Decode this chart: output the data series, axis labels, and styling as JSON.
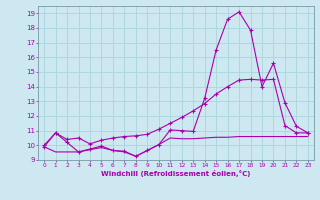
{
  "xlabel": "Windchill (Refroidissement éolien,°C)",
  "xlim": [
    -0.5,
    23.5
  ],
  "ylim": [
    9,
    19.5
  ],
  "xtick_vals": [
    0,
    1,
    2,
    3,
    4,
    5,
    6,
    7,
    8,
    9,
    10,
    11,
    12,
    13,
    14,
    15,
    16,
    17,
    18,
    19,
    20,
    21,
    22,
    23
  ],
  "ytick_vals": [
    9,
    10,
    11,
    12,
    13,
    14,
    15,
    16,
    17,
    18,
    19
  ],
  "bg_color": "#cde8f0",
  "line_color": "#aa00aa",
  "grid_color": "#a8d5de",
  "line1_x": [
    0,
    1,
    2,
    3,
    4,
    5,
    6,
    7,
    8,
    9,
    10,
    11,
    12,
    13,
    14,
    15,
    16,
    17,
    18,
    19,
    20,
    21,
    22,
    23
  ],
  "line1_y": [
    9.9,
    10.85,
    10.2,
    9.55,
    9.75,
    9.95,
    9.65,
    9.6,
    9.25,
    9.65,
    10.05,
    11.05,
    11.0,
    10.95,
    13.2,
    16.5,
    18.6,
    19.1,
    17.85,
    14.0,
    15.6,
    12.9,
    11.3,
    10.85
  ],
  "line2_x": [
    0,
    1,
    2,
    3,
    4,
    5,
    6,
    7,
    8,
    9,
    10,
    11,
    12,
    13,
    14,
    15,
    16,
    17,
    18,
    19,
    20,
    21,
    22,
    23
  ],
  "line2_y": [
    10.0,
    10.85,
    10.4,
    10.5,
    10.1,
    10.35,
    10.5,
    10.6,
    10.65,
    10.75,
    11.1,
    11.5,
    11.9,
    12.35,
    12.85,
    13.5,
    14.0,
    14.45,
    14.5,
    14.45,
    14.5,
    11.35,
    10.85,
    10.85
  ],
  "line3_x": [
    0,
    1,
    2,
    3,
    4,
    5,
    6,
    7,
    8,
    9,
    10,
    11,
    12,
    13,
    14,
    15,
    16,
    17,
    18,
    19,
    20,
    21,
    22,
    23
  ],
  "line3_y": [
    9.9,
    9.55,
    9.55,
    9.55,
    9.7,
    9.85,
    9.65,
    9.55,
    9.25,
    9.65,
    10.05,
    10.5,
    10.45,
    10.45,
    10.5,
    10.55,
    10.55,
    10.6,
    10.6,
    10.6,
    10.6,
    10.6,
    10.6,
    10.6
  ]
}
